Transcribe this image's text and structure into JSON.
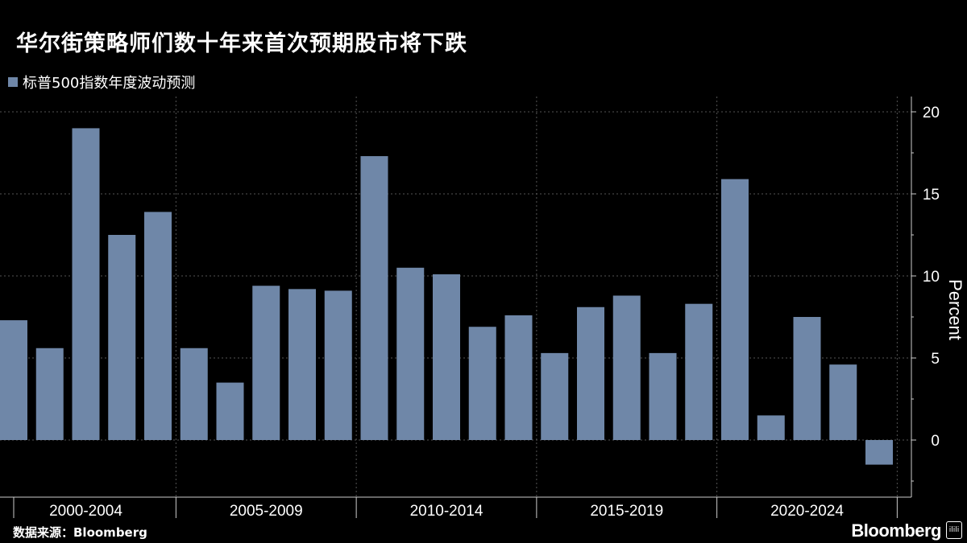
{
  "header": {
    "title": "华尔街策略师们数十年来首次预期股市将下跌"
  },
  "legend": {
    "label": "标普500指数年度波动预测"
  },
  "footer": {
    "source": "数据来源：Bloomberg",
    "brand": "Bloomberg",
    "brand_badge": "ilili"
  },
  "chart_data": {
    "type": "bar",
    "ylabel": "Percent",
    "xlabel": "",
    "ylim": [
      -3,
      21
    ],
    "yticks": [
      0,
      5,
      10,
      15,
      20
    ],
    "grid": true,
    "y_axis_side": "right",
    "legend_position": "top-left",
    "bar_color": "#6f87a8",
    "groups": [
      "2000-2004",
      "2005-2009",
      "2010-2014",
      "2015-2019",
      "2020-2024"
    ],
    "values": [
      7.3,
      5.6,
      19.0,
      12.5,
      13.9,
      5.6,
      3.5,
      9.4,
      9.2,
      9.1,
      17.3,
      10.5,
      10.1,
      6.9,
      7.6,
      5.3,
      8.1,
      8.8,
      5.3,
      8.3,
      15.9,
      1.5,
      7.5,
      4.6,
      -1.5
    ]
  }
}
